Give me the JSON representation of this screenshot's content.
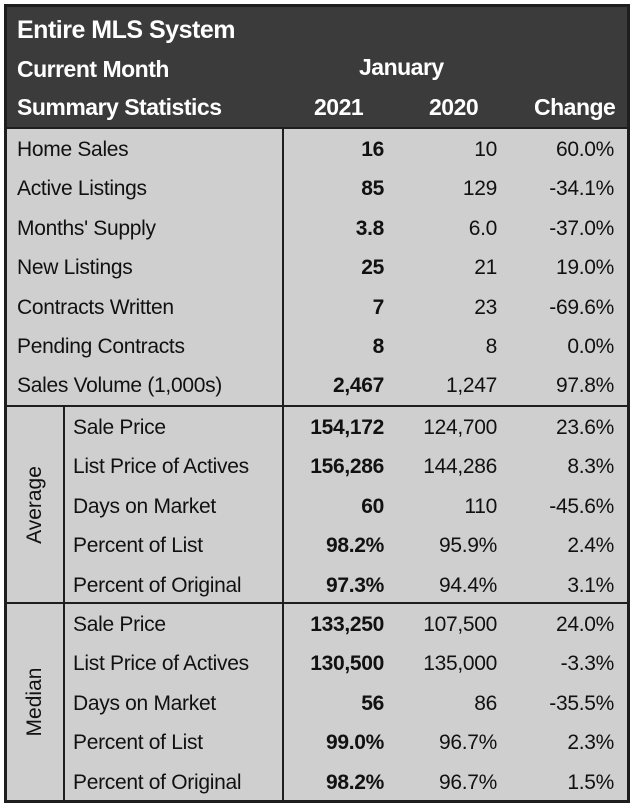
{
  "header": {
    "title": "Entire MLS System",
    "current_month_label": "Current Month",
    "month": "January",
    "summary_label": "Summary Statistics",
    "year_current": "2021",
    "year_prior": "2020",
    "change_label": "Change"
  },
  "summary_rows": [
    {
      "label": "Home Sales",
      "y2021": "16",
      "y2020": "10",
      "change": "60.0%"
    },
    {
      "label": "Active Listings",
      "y2021": "85",
      "y2020": "129",
      "change": "-34.1%"
    },
    {
      "label": "Months' Supply",
      "y2021": "3.8",
      "y2020": "6.0",
      "change": "-37.0%"
    },
    {
      "label": "New Listings",
      "y2021": "25",
      "y2020": "21",
      "change": "19.0%"
    },
    {
      "label": "Contracts Written",
      "y2021": "7",
      "y2020": "23",
      "change": "-69.6%"
    },
    {
      "label": "Pending Contracts",
      "y2021": "8",
      "y2020": "8",
      "change": "0.0%"
    },
    {
      "label": "Sales Volume (1,000s)",
      "y2021": "2,467",
      "y2020": "1,247",
      "change": "97.8%"
    }
  ],
  "average": {
    "section_label": "Average",
    "rows": [
      {
        "label": "Sale Price",
        "y2021": "154,172",
        "y2020": "124,700",
        "change": "23.6%"
      },
      {
        "label": "List Price of Actives",
        "y2021": "156,286",
        "y2020": "144,286",
        "change": "8.3%"
      },
      {
        "label": "Days on Market",
        "y2021": "60",
        "y2020": "110",
        "change": "-45.6%"
      },
      {
        "label": "Percent of List",
        "y2021": "98.2%",
        "y2020": "95.9%",
        "change": "2.4%"
      },
      {
        "label": "Percent of Original",
        "y2021": "97.3%",
        "y2020": "94.4%",
        "change": "3.1%"
      }
    ]
  },
  "median": {
    "section_label": "Median",
    "rows": [
      {
        "label": "Sale Price",
        "y2021": "133,250",
        "y2020": "107,500",
        "change": "24.0%"
      },
      {
        "label": "List Price of Actives",
        "y2021": "130,500",
        "y2020": "135,000",
        "change": "-3.3%"
      },
      {
        "label": "Days on Market",
        "y2021": "56",
        "y2020": "86",
        "change": "-35.5%"
      },
      {
        "label": "Percent of List",
        "y2021": "99.0%",
        "y2020": "96.7%",
        "change": "2.3%"
      },
      {
        "label": "Percent of Original",
        "y2021": "98.2%",
        "y2020": "96.7%",
        "change": "1.5%"
      }
    ]
  }
}
